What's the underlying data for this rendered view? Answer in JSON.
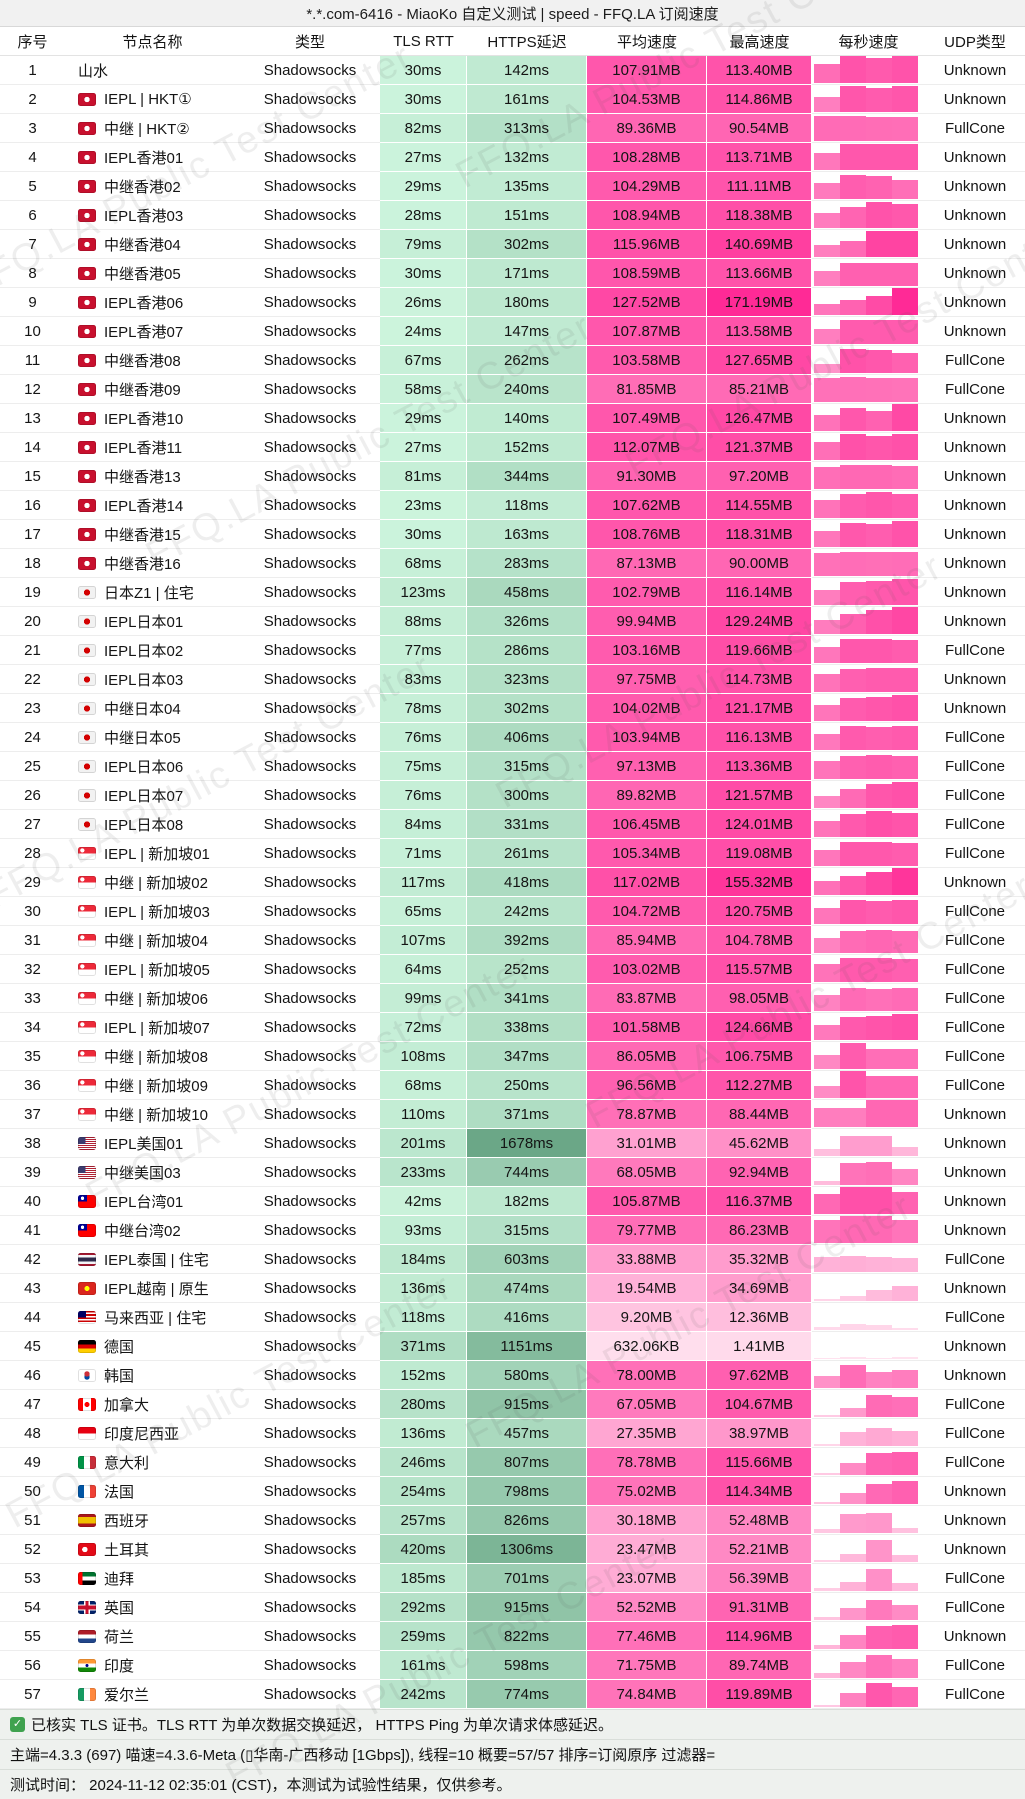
{
  "title": "*.*.com-6416 - MiaoKo 自定义测试 | speed - FFQ.LA 订阅速度",
  "watermark": "FFQ.LA Public Test Center",
  "columns": [
    "序号",
    "节点名称",
    "类型",
    "TLS RTT",
    "HTTPS延迟",
    "平均速度",
    "最高速度",
    "每秒速度",
    "UDP类型"
  ],
  "type_default": "Shadowsocks",
  "color_ramps": {
    "latency_light": "#d0f7e0",
    "latency_dark": "#6aa686",
    "latency_max_ms": 1700,
    "speed_light": "#ffe4f0",
    "speed_dark": "#ff2a96",
    "speed_max_mb": 171.19
  },
  "rows": [
    {
      "n": 1,
      "flag": "",
      "name": "山水",
      "tls_ms": 30,
      "https_ms": 142,
      "avg": "107.91MB",
      "avg_mb": 107.91,
      "max": "113.40MB",
      "max_mb": 113.4,
      "udp": "Unknown",
      "bars": [
        0.72,
        1,
        0.92,
        1
      ]
    },
    {
      "n": 2,
      "flag": "hk",
      "name": "IEPL | HKT①",
      "tls_ms": 30,
      "https_ms": 161,
      "avg": "104.53MB",
      "avg_mb": 104.53,
      "max": "114.86MB",
      "max_mb": 114.86,
      "udp": "Unknown",
      "bars": [
        0.55,
        0.95,
        0.9,
        0.95
      ]
    },
    {
      "n": 3,
      "flag": "hk",
      "name": "中继 | HKT②",
      "tls_ms": 82,
      "https_ms": 313,
      "avg": "89.36MB",
      "avg_mb": 89.36,
      "max": "90.54MB",
      "max_mb": 90.54,
      "udp": "FullCone",
      "bars": [
        0.92,
        0.92,
        0.9,
        0.88
      ]
    },
    {
      "n": 4,
      "flag": "hk",
      "name": "IEPL香港01",
      "tls_ms": 27,
      "https_ms": 132,
      "avg": "108.28MB",
      "avg_mb": 108.28,
      "max": "113.71MB",
      "max_mb": 113.71,
      "udp": "Unknown",
      "bars": [
        0.62,
        0.95,
        0.95,
        0.95
      ]
    },
    {
      "n": 5,
      "flag": "hk",
      "name": "中继香港02",
      "tls_ms": 29,
      "https_ms": 135,
      "avg": "104.29MB",
      "avg_mb": 104.29,
      "max": "111.11MB",
      "max_mb": 111.11,
      "udp": "Unknown",
      "bars": [
        0.6,
        0.9,
        0.85,
        0.72
      ]
    },
    {
      "n": 6,
      "flag": "hk",
      "name": "IEPL香港03",
      "tls_ms": 28,
      "https_ms": 151,
      "avg": "108.94MB",
      "avg_mb": 108.94,
      "max": "118.38MB",
      "max_mb": 118.38,
      "udp": "Unknown",
      "bars": [
        0.55,
        0.78,
        0.95,
        0.9
      ]
    },
    {
      "n": 7,
      "flag": "hk",
      "name": "中继香港04",
      "tls_ms": 79,
      "https_ms": 302,
      "avg": "115.96MB",
      "avg_mb": 115.96,
      "max": "140.69MB",
      "max_mb": 140.69,
      "udp": "Unknown",
      "bars": [
        0.45,
        0.6,
        0.95,
        0.95
      ]
    },
    {
      "n": 8,
      "flag": "hk",
      "name": "中继香港05",
      "tls_ms": 30,
      "https_ms": 171,
      "avg": "108.59MB",
      "avg_mb": 108.59,
      "max": "113.66MB",
      "max_mb": 113.66,
      "udp": "Unknown",
      "bars": [
        0.55,
        0.85,
        0.85,
        0.85
      ]
    },
    {
      "n": 9,
      "flag": "hk",
      "name": "IEPL香港06",
      "tls_ms": 26,
      "https_ms": 180,
      "avg": "127.52MB",
      "avg_mb": 127.52,
      "max": "171.19MB",
      "max_mb": 171.19,
      "udp": "Unknown",
      "bars": [
        0.42,
        0.55,
        0.72,
        1
      ]
    },
    {
      "n": 10,
      "flag": "hk",
      "name": "IEPL香港07",
      "tls_ms": 24,
      "https_ms": 147,
      "avg": "107.87MB",
      "avg_mb": 107.87,
      "max": "113.58MB",
      "max_mb": 113.58,
      "udp": "Unknown",
      "bars": [
        0.55,
        0.9,
        0.9,
        0.9
      ]
    },
    {
      "n": 11,
      "flag": "hk",
      "name": "中继香港08",
      "tls_ms": 67,
      "https_ms": 262,
      "avg": "103.58MB",
      "avg_mb": 103.58,
      "max": "127.65MB",
      "max_mb": 127.65,
      "udp": "FullCone",
      "bars": [
        0.35,
        0.9,
        0.85,
        0.75
      ]
    },
    {
      "n": 12,
      "flag": "hk",
      "name": "中继香港09",
      "tls_ms": 58,
      "https_ms": 240,
      "avg": "81.85MB",
      "avg_mb": 81.85,
      "max": "85.21MB",
      "max_mb": 85.21,
      "udp": "FullCone",
      "bars": [
        0.9,
        0.92,
        0.9,
        0.88
      ]
    },
    {
      "n": 13,
      "flag": "hk",
      "name": "IEPL香港10",
      "tls_ms": 29,
      "https_ms": 140,
      "avg": "107.49MB",
      "avg_mb": 107.49,
      "max": "126.47MB",
      "max_mb": 126.47,
      "udp": "Unknown",
      "bars": [
        0.6,
        0.85,
        0.75,
        1
      ]
    },
    {
      "n": 14,
      "flag": "hk",
      "name": "IEPL香港11",
      "tls_ms": 27,
      "https_ms": 152,
      "avg": "112.07MB",
      "avg_mb": 112.07,
      "max": "121.37MB",
      "max_mb": 121.37,
      "udp": "Unknown",
      "bars": [
        0.65,
        0.95,
        0.9,
        0.95
      ]
    },
    {
      "n": 15,
      "flag": "hk",
      "name": "中继香港13",
      "tls_ms": 81,
      "https_ms": 344,
      "avg": "91.30MB",
      "avg_mb": 91.3,
      "max": "97.20MB",
      "max_mb": 97.2,
      "udp": "Unknown",
      "bars": [
        0.82,
        0.9,
        0.9,
        0.85
      ]
    },
    {
      "n": 16,
      "flag": "hk",
      "name": "IEPL香港14",
      "tls_ms": 23,
      "https_ms": 118,
      "avg": "107.62MB",
      "avg_mb": 107.62,
      "max": "114.55MB",
      "max_mb": 114.55,
      "udp": "Unknown",
      "bars": [
        0.65,
        0.9,
        0.95,
        0.9
      ]
    },
    {
      "n": 17,
      "flag": "hk",
      "name": "中继香港15",
      "tls_ms": 30,
      "https_ms": 163,
      "avg": "108.76MB",
      "avg_mb": 108.76,
      "max": "118.31MB",
      "max_mb": 118.31,
      "udp": "Unknown",
      "bars": [
        0.6,
        0.9,
        0.85,
        0.95
      ]
    },
    {
      "n": 18,
      "flag": "hk",
      "name": "中继香港16",
      "tls_ms": 68,
      "https_ms": 283,
      "avg": "87.13MB",
      "avg_mb": 87.13,
      "max": "90.00MB",
      "max_mb": 90.0,
      "udp": "Unknown",
      "bars": [
        0.85,
        0.9,
        0.88,
        0.9
      ]
    },
    {
      "n": 19,
      "flag": "jp",
      "name": "日本Z1 | 住宅",
      "tls_ms": 123,
      "https_ms": 458,
      "avg": "102.79MB",
      "avg_mb": 102.79,
      "max": "116.14MB",
      "max_mb": 116.14,
      "udp": "Unknown",
      "bars": [
        0.55,
        0.85,
        0.9,
        0.95
      ]
    },
    {
      "n": 20,
      "flag": "jp",
      "name": "IEPL日本01",
      "tls_ms": 88,
      "https_ms": 326,
      "avg": "99.94MB",
      "avg_mb": 99.94,
      "max": "129.24MB",
      "max_mb": 129.24,
      "udp": "Unknown",
      "bars": [
        0.5,
        0.75,
        0.9,
        1
      ]
    },
    {
      "n": 21,
      "flag": "jp",
      "name": "IEPL日本02",
      "tls_ms": 77,
      "https_ms": 286,
      "avg": "103.16MB",
      "avg_mb": 103.16,
      "max": "119.66MB",
      "max_mb": 119.66,
      "udp": "FullCone",
      "bars": [
        0.6,
        0.9,
        0.9,
        0.85
      ]
    },
    {
      "n": 22,
      "flag": "jp",
      "name": "IEPL日本03",
      "tls_ms": 83,
      "https_ms": 323,
      "avg": "97.75MB",
      "avg_mb": 97.75,
      "max": "114.73MB",
      "max_mb": 114.73,
      "udp": "Unknown",
      "bars": [
        0.65,
        0.85,
        0.9,
        0.9
      ]
    },
    {
      "n": 23,
      "flag": "jp",
      "name": "中继日本04",
      "tls_ms": 78,
      "https_ms": 302,
      "avg": "104.02MB",
      "avg_mb": 104.02,
      "max": "121.17MB",
      "max_mb": 121.17,
      "udp": "Unknown",
      "bars": [
        0.6,
        0.85,
        0.9,
        0.95
      ]
    },
    {
      "n": 24,
      "flag": "jp",
      "name": "中继日本05",
      "tls_ms": 76,
      "https_ms": 406,
      "avg": "103.94MB",
      "avg_mb": 103.94,
      "max": "116.13MB",
      "max_mb": 116.13,
      "udp": "FullCone",
      "bars": [
        0.6,
        0.9,
        0.85,
        0.9
      ]
    },
    {
      "n": 25,
      "flag": "jp",
      "name": "IEPL日本06",
      "tls_ms": 75,
      "https_ms": 315,
      "avg": "97.13MB",
      "avg_mb": 97.13,
      "max": "113.36MB",
      "max_mb": 113.36,
      "udp": "FullCone",
      "bars": [
        0.65,
        0.85,
        0.9,
        0.85
      ]
    },
    {
      "n": 26,
      "flag": "jp",
      "name": "IEPL日本07",
      "tls_ms": 76,
      "https_ms": 300,
      "avg": "89.82MB",
      "avg_mb": 89.82,
      "max": "121.57MB",
      "max_mb": 121.57,
      "udp": "FullCone",
      "bars": [
        0.45,
        0.7,
        0.9,
        0.95
      ]
    },
    {
      "n": 27,
      "flag": "jp",
      "name": "IEPL日本08",
      "tls_ms": 84,
      "https_ms": 331,
      "avg": "106.45MB",
      "avg_mb": 106.45,
      "max": "124.01MB",
      "max_mb": 124.01,
      "udp": "FullCone",
      "bars": [
        0.6,
        0.85,
        0.95,
        0.9
      ]
    },
    {
      "n": 28,
      "flag": "sg",
      "name": "IEPL | 新加坡01",
      "tls_ms": 71,
      "https_ms": 261,
      "avg": "105.34MB",
      "avg_mb": 105.34,
      "max": "119.08MB",
      "max_mb": 119.08,
      "udp": "FullCone",
      "bars": [
        0.6,
        0.9,
        0.9,
        0.85
      ]
    },
    {
      "n": 29,
      "flag": "sg",
      "name": "中继 | 新加坡02",
      "tls_ms": 117,
      "https_ms": 418,
      "avg": "117.02MB",
      "avg_mb": 117.02,
      "max": "155.32MB",
      "max_mb": 155.32,
      "udp": "Unknown",
      "bars": [
        0.5,
        0.7,
        0.85,
        1
      ]
    },
    {
      "n": 30,
      "flag": "sg",
      "name": "IEPL | 新加坡03",
      "tls_ms": 65,
      "https_ms": 242,
      "avg": "104.72MB",
      "avg_mb": 104.72,
      "max": "120.75MB",
      "max_mb": 120.75,
      "udp": "FullCone",
      "bars": [
        0.6,
        0.9,
        0.85,
        0.9
      ]
    },
    {
      "n": 31,
      "flag": "sg",
      "name": "中继 | 新加坡04",
      "tls_ms": 107,
      "https_ms": 392,
      "avg": "85.94MB",
      "avg_mb": 85.94,
      "max": "104.78MB",
      "max_mb": 104.78,
      "udp": "FullCone",
      "bars": [
        0.55,
        0.8,
        0.85,
        0.8
      ]
    },
    {
      "n": 32,
      "flag": "sg",
      "name": "IEPL | 新加坡05",
      "tls_ms": 64,
      "https_ms": 252,
      "avg": "103.02MB",
      "avg_mb": 103.02,
      "max": "115.57MB",
      "max_mb": 115.57,
      "udp": "FullCone",
      "bars": [
        0.65,
        0.9,
        0.9,
        0.85
      ]
    },
    {
      "n": 33,
      "flag": "sg",
      "name": "中继 | 新加坡06",
      "tls_ms": 99,
      "https_ms": 341,
      "avg": "83.87MB",
      "avg_mb": 83.87,
      "max": "98.05MB",
      "max_mb": 98.05,
      "udp": "FullCone",
      "bars": [
        0.6,
        0.85,
        0.8,
        0.85
      ]
    },
    {
      "n": 34,
      "flag": "sg",
      "name": "IEPL | 新加坡07",
      "tls_ms": 72,
      "https_ms": 338,
      "avg": "101.58MB",
      "avg_mb": 101.58,
      "max": "124.66MB",
      "max_mb": 124.66,
      "udp": "FullCone",
      "bars": [
        0.55,
        0.85,
        0.9,
        0.95
      ]
    },
    {
      "n": 35,
      "flag": "sg",
      "name": "中继 | 新加坡08",
      "tls_ms": 108,
      "https_ms": 347,
      "avg": "86.05MB",
      "avg_mb": 86.05,
      "max": "106.75MB",
      "max_mb": 106.75,
      "udp": "FullCone",
      "bars": [
        0.5,
        0.95,
        0.75,
        0.75
      ]
    },
    {
      "n": 36,
      "flag": "sg",
      "name": "中继 | 新加坡09",
      "tls_ms": 68,
      "https_ms": 250,
      "avg": "96.56MB",
      "avg_mb": 96.56,
      "max": "112.27MB",
      "max_mb": 112.27,
      "udp": "FullCone",
      "bars": [
        0.45,
        1,
        0.8,
        0.8
      ]
    },
    {
      "n": 37,
      "flag": "sg",
      "name": "中继 | 新加坡10",
      "tls_ms": 110,
      "https_ms": 371,
      "avg": "78.87MB",
      "avg_mb": 78.87,
      "max": "88.44MB",
      "max_mb": 88.44,
      "udp": "Unknown",
      "bars": [
        0.72,
        0.72,
        1,
        1
      ]
    },
    {
      "n": 38,
      "flag": "us",
      "name": "IEPL美国01",
      "tls_ms": 201,
      "https_ms": 1678,
      "avg": "31.01MB",
      "avg_mb": 31.01,
      "max": "45.62MB",
      "max_mb": 45.62,
      "udp": "Unknown",
      "bars": [
        0.25,
        0.75,
        0.75,
        0.35
      ]
    },
    {
      "n": 39,
      "flag": "us",
      "name": "中继美国03",
      "tls_ms": 233,
      "https_ms": 744,
      "avg": "68.05MB",
      "avg_mb": 68.05,
      "max": "92.94MB",
      "max_mb": 92.94,
      "udp": "Unknown",
      "bars": [
        0.15,
        0.8,
        0.85,
        0.6
      ]
    },
    {
      "n": 40,
      "flag": "tw",
      "name": "IEPL台湾01",
      "tls_ms": 42,
      "https_ms": 182,
      "avg": "105.87MB",
      "avg_mb": 105.87,
      "max": "116.37MB",
      "max_mb": 116.37,
      "udp": "Unknown",
      "bars": [
        0.75,
        1,
        1,
        0.8
      ]
    },
    {
      "n": 41,
      "flag": "tw",
      "name": "中继台湾02",
      "tls_ms": 93,
      "https_ms": 315,
      "avg": "79.77MB",
      "avg_mb": 79.77,
      "max": "86.23MB",
      "max_mb": 86.23,
      "udp": "Unknown",
      "bars": [
        0.85,
        1,
        1,
        0.85
      ]
    },
    {
      "n": 42,
      "flag": "th",
      "name": "IEPL泰国 | 住宅",
      "tls_ms": 184,
      "https_ms": 603,
      "avg": "33.88MB",
      "avg_mb": 33.88,
      "max": "35.32MB",
      "max_mb": 35.32,
      "udp": "FullCone",
      "bars": [
        0.55,
        0.6,
        0.55,
        0.5
      ]
    },
    {
      "n": 43,
      "flag": "vn",
      "name": "IEPL越南 | 原生",
      "tls_ms": 136,
      "https_ms": 474,
      "avg": "19.54MB",
      "avg_mb": 19.54,
      "max": "34.69MB",
      "max_mb": 34.69,
      "udp": "Unknown",
      "bars": [
        0.08,
        0.2,
        0.4,
        0.55
      ]
    },
    {
      "n": 44,
      "flag": "my",
      "name": "马来西亚 | 住宅",
      "tls_ms": 118,
      "https_ms": 416,
      "avg": "9.20MB",
      "avg_mb": 9.2,
      "max": "12.36MB",
      "max_mb": 12.36,
      "udp": "FullCone",
      "bars": [
        0.12,
        0.22,
        0.18,
        0.08
      ]
    },
    {
      "n": 45,
      "flag": "de",
      "name": "德国",
      "tls_ms": 371,
      "https_ms": 1151,
      "avg": "632.06KB",
      "avg_mb": 0.63,
      "max": "1.41MB",
      "max_mb": 1.41,
      "udp": "Unknown",
      "bars": [
        0.05,
        0.06,
        0.05,
        0.06
      ]
    },
    {
      "n": 46,
      "flag": "kr",
      "name": "韩国",
      "tls_ms": 152,
      "https_ms": 580,
      "avg": "78.00MB",
      "avg_mb": 78.0,
      "max": "97.62MB",
      "max_mb": 97.62,
      "udp": "Unknown",
      "bars": [
        0.45,
        0.85,
        0.6,
        0.65
      ]
    },
    {
      "n": 47,
      "flag": "ca",
      "name": "加拿大",
      "tls_ms": 280,
      "https_ms": 915,
      "avg": "67.05MB",
      "avg_mb": 67.05,
      "max": "104.67MB",
      "max_mb": 104.67,
      "udp": "FullCone",
      "bars": [
        0.06,
        0.35,
        0.8,
        0.75
      ]
    },
    {
      "n": 48,
      "flag": "id",
      "name": "印度尼西亚",
      "tls_ms": 136,
      "https_ms": 457,
      "avg": "27.35MB",
      "avg_mb": 27.35,
      "max": "38.97MB",
      "max_mb": 38.97,
      "udp": "FullCone",
      "bars": [
        0.06,
        0.5,
        0.65,
        0.55
      ]
    },
    {
      "n": 49,
      "flag": "it",
      "name": "意大利",
      "tls_ms": 246,
      "https_ms": 807,
      "avg": "78.78MB",
      "avg_mb": 78.78,
      "max": "115.66MB",
      "max_mb": 115.66,
      "udp": "FullCone",
      "bars": [
        0.06,
        0.45,
        0.8,
        0.85
      ]
    },
    {
      "n": 50,
      "flag": "fr",
      "name": "法国",
      "tls_ms": 254,
      "https_ms": 798,
      "avg": "75.02MB",
      "avg_mb": 75.02,
      "max": "114.34MB",
      "max_mb": 114.34,
      "udp": "Unknown",
      "bars": [
        0.08,
        0.4,
        0.75,
        0.85
      ]
    },
    {
      "n": 51,
      "flag": "es",
      "name": "西班牙",
      "tls_ms": 257,
      "https_ms": 826,
      "avg": "30.18MB",
      "avg_mb": 30.18,
      "max": "52.48MB",
      "max_mb": 52.48,
      "udp": "Unknown",
      "bars": [
        0.15,
        0.7,
        0.75,
        0.2
      ]
    },
    {
      "n": 52,
      "flag": "tr",
      "name": "土耳其",
      "tls_ms": 420,
      "https_ms": 1306,
      "avg": "23.47MB",
      "avg_mb": 23.47,
      "max": "52.21MB",
      "max_mb": 52.21,
      "udp": "Unknown",
      "bars": [
        0.08,
        0.3,
        0.8,
        0.25
      ]
    },
    {
      "n": 53,
      "flag": "ae",
      "name": "迪拜",
      "tls_ms": 185,
      "https_ms": 701,
      "avg": "23.07MB",
      "avg_mb": 23.07,
      "max": "56.39MB",
      "max_mb": 56.39,
      "udp": "FullCone",
      "bars": [
        0.1,
        0.35,
        0.8,
        0.3
      ]
    },
    {
      "n": 54,
      "flag": "gb",
      "name": "英国",
      "tls_ms": 292,
      "https_ms": 915,
      "avg": "52.52MB",
      "avg_mb": 52.52,
      "max": "91.31MB",
      "max_mb": 91.31,
      "udp": "FullCone",
      "bars": [
        0.1,
        0.45,
        0.75,
        0.55
      ]
    },
    {
      "n": 55,
      "flag": "nl",
      "name": "荷兰",
      "tls_ms": 259,
      "https_ms": 822,
      "avg": "77.46MB",
      "avg_mb": 77.46,
      "max": "114.96MB",
      "max_mb": 114.96,
      "udp": "Unknown",
      "bars": [
        0.15,
        0.5,
        0.85,
        0.9
      ]
    },
    {
      "n": 56,
      "flag": "in",
      "name": "印度",
      "tls_ms": 161,
      "https_ms": 598,
      "avg": "71.75MB",
      "avg_mb": 71.75,
      "max": "89.74MB",
      "max_mb": 89.74,
      "udp": "FullCone",
      "bars": [
        0.2,
        0.6,
        0.85,
        0.7
      ]
    },
    {
      "n": 57,
      "flag": "ie",
      "name": "爱尔兰",
      "tls_ms": 242,
      "https_ms": 774,
      "avg": "74.84MB",
      "avg_mb": 74.84,
      "max": "119.89MB",
      "max_mb": 119.89,
      "udp": "FullCone",
      "bars": [
        0.06,
        0.5,
        0.9,
        0.75
      ]
    }
  ],
  "footer": {
    "line1": "已核实 TLS 证书。TLS RTT 为单次数据交换延迟， HTTPS Ping 为单次请求体感延迟。",
    "line2": "主端=4.3.3 (697) 喵速=4.3.6-Meta (▯华南-广西移动 [1Gbps]), 线程=10 概要=57/57 排序=订阅原序 过滤器=",
    "line3": "测试时间： 2024-11-12 02:35:01 (CST)，本测试为试验性结果，仅供参考。"
  }
}
